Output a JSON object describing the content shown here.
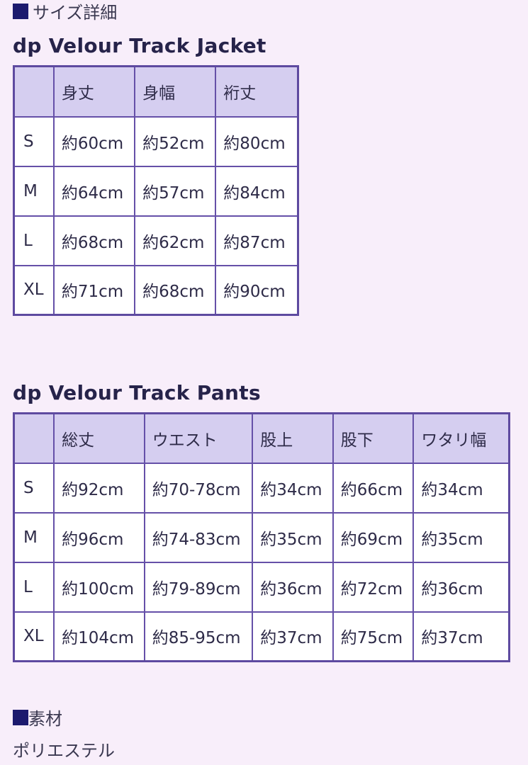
{
  "size_section": {
    "heading": "サイズ詳細"
  },
  "jacket": {
    "title": "dp Velour Track Jacket",
    "headers": [
      "",
      "身丈",
      "身幅",
      "裄丈"
    ],
    "rows": [
      [
        "S",
        "約60cm",
        "約52cm",
        "約80cm"
      ],
      [
        "M",
        "約64cm",
        "約57cm",
        "約84cm"
      ],
      [
        "L",
        "約68cm",
        "約62cm",
        "約87cm"
      ],
      [
        "XL",
        "約71cm",
        "約68cm",
        "約90cm"
      ]
    ]
  },
  "pants": {
    "title": "dp Velour Track Pants",
    "headers": [
      "",
      "総丈",
      "ウエスト",
      "股上",
      "股下",
      "ワタリ幅"
    ],
    "rows": [
      [
        "S",
        "約92cm",
        "約70-78cm",
        "約34cm",
        "約66cm",
        "約34cm"
      ],
      [
        "M",
        "約96cm",
        "約74-83cm",
        "約35cm",
        "約69cm",
        "約35cm"
      ],
      [
        "L",
        "約100cm",
        "約79-89cm",
        "約36cm",
        "約72cm",
        "約36cm"
      ],
      [
        "XL",
        "約104cm",
        "約85-95cm",
        "約37cm",
        "約75cm",
        "約37cm"
      ]
    ]
  },
  "material_section": {
    "heading": "素材",
    "value": "ポリエステル"
  },
  "colors": {
    "background": "#f8eefa",
    "header_cell": "#d5cef0",
    "border": "#6550a8",
    "bullet": "#1c1a6e"
  }
}
